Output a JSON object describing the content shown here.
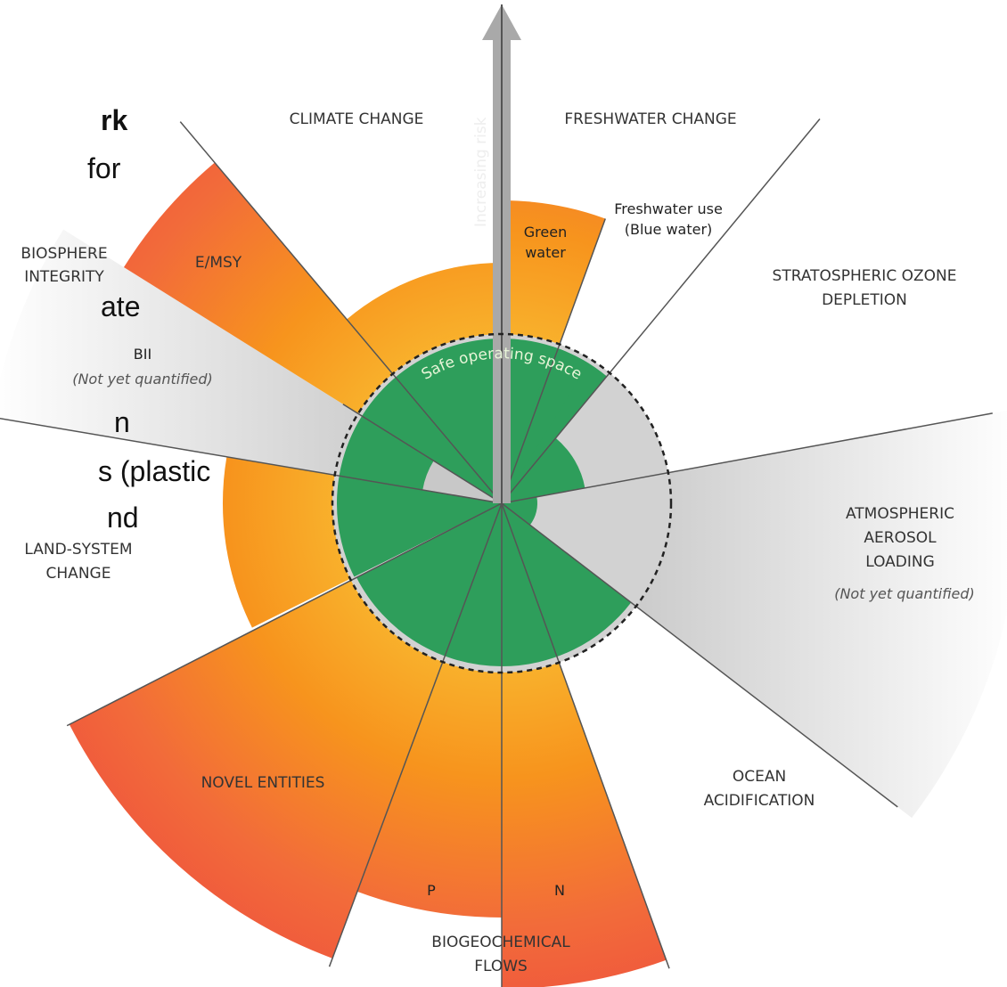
{
  "left_text": [
    "rk",
    "for",
    "ate",
    "n",
    "s (plastic",
    "nd"
  ],
  "labels": {
    "climate_change": "CLIMATE CHANGE",
    "increasing_risk": "Increasing risk",
    "freshwater_change": "FRESHWATER CHANGE",
    "freshwater_use": [
      "Freshwater use",
      "(Blue water)"
    ],
    "green_water": [
      "Green",
      "water"
    ],
    "ozone": [
      "STRATOSPHERIC OZONE",
      "DEPLETION"
    ],
    "biosphere": [
      "BIOSPHERE",
      "INTEGRITY"
    ],
    "emsy": "E/MSY",
    "bii": "BII",
    "bii_note": "(Not yet quantified)",
    "safe_space": "Safe operating space",
    "land_system": [
      "LAND-SYSTEM",
      "CHANGE"
    ],
    "aerosol": [
      "ATMOSPHERIC",
      "AEROSOL",
      "LOADING"
    ],
    "aerosol_note": "(Not yet quantified)",
    "novel_entities": "NOVEL ENTITIES",
    "ocean": [
      "OCEAN",
      "ACIDIFICATION"
    ],
    "p": "P",
    "n": "N",
    "biogeochemical": [
      "BIOGEOCHEMICAL",
      "FLOWS"
    ]
  }
}
